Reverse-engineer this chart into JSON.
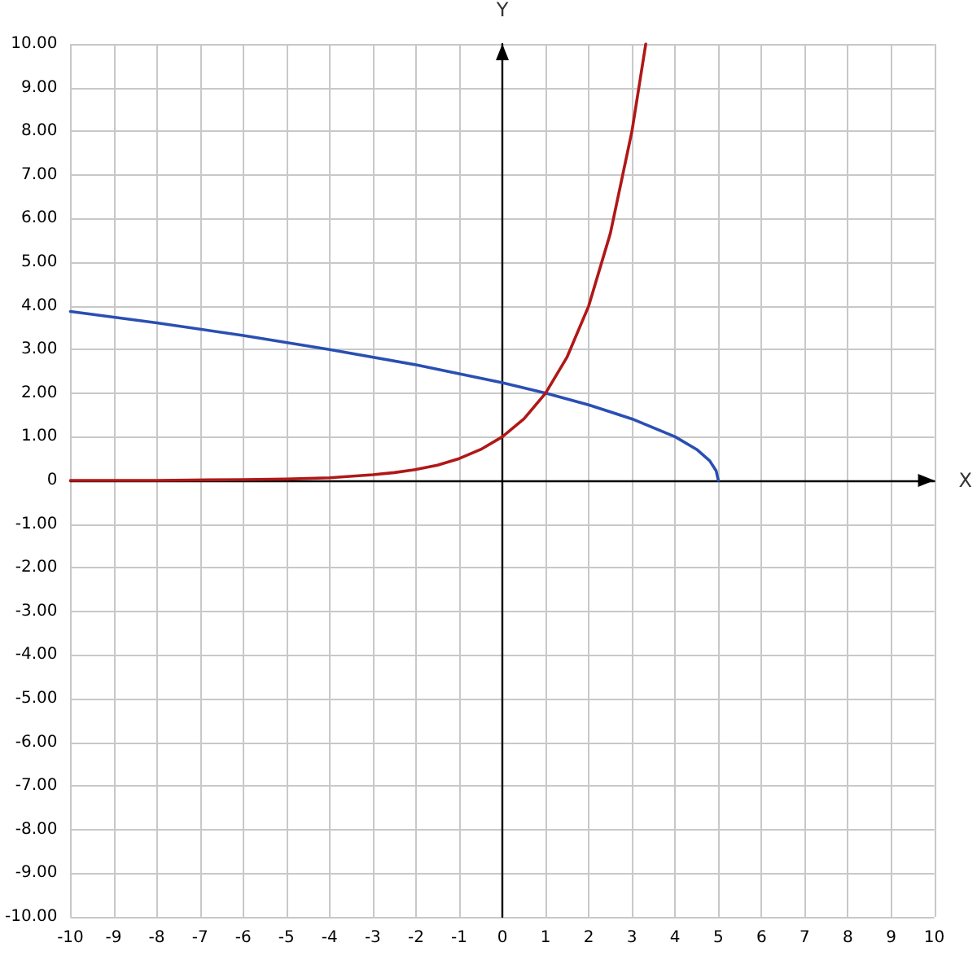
{
  "chart_data": {
    "type": "line",
    "xlabel": "X",
    "ylabel": "Y",
    "xlim": [
      -10,
      10
    ],
    "ylim": [
      -10,
      10
    ],
    "xticks": [
      -10,
      -9,
      -8,
      -7,
      -6,
      -5,
      -4,
      -3,
      -2,
      -1,
      0,
      1,
      2,
      3,
      4,
      5,
      6,
      7,
      8,
      9,
      10
    ],
    "yticks": [
      {
        "value": -10,
        "label": "-10.00"
      },
      {
        "value": -9,
        "label": "-9.00"
      },
      {
        "value": -8,
        "label": "-8.00"
      },
      {
        "value": -7,
        "label": "-7.00"
      },
      {
        "value": -6,
        "label": "-6.00"
      },
      {
        "value": -5,
        "label": "-5.00"
      },
      {
        "value": -4,
        "label": "-4.00"
      },
      {
        "value": -3,
        "label": "-3.00"
      },
      {
        "value": -2,
        "label": "-2.00"
      },
      {
        "value": -1,
        "label": "-1.00"
      },
      0,
      {
        "value": 1,
        "label": "1.00"
      },
      {
        "value": 2,
        "label": "2.00"
      },
      {
        "value": 3,
        "label": "3.00"
      },
      {
        "value": 4,
        "label": "4.00"
      },
      {
        "value": 5,
        "label": "5.00"
      },
      {
        "value": 6,
        "label": "6.00"
      },
      {
        "value": 7,
        "label": "7.00"
      },
      {
        "value": 8,
        "label": "8.00"
      },
      {
        "value": 9,
        "label": "9.00"
      },
      {
        "value": 10,
        "label": "10.00"
      }
    ],
    "grid": true,
    "marker": "none",
    "line_style": "solid",
    "series": [
      {
        "color": "#2a4fb3",
        "x": [
          -10,
          -8,
          -6,
          -4,
          -2,
          0,
          1,
          2,
          3,
          4,
          4.5,
          4.8,
          4.95,
          5
        ],
        "values": [
          3.87,
          3.61,
          3.32,
          3,
          2.65,
          2.24,
          2,
          1.73,
          1.41,
          1,
          0.71,
          0.45,
          0.22,
          0
        ]
      },
      {
        "color": "#b01818",
        "x": [
          -10,
          -8,
          -6,
          -5,
          -4,
          -3,
          -2.5,
          -2,
          -1.5,
          -1,
          -0.5,
          0,
          0.5,
          1,
          1.5,
          2,
          2.5,
          3,
          3.32
        ],
        "values": [
          0,
          0,
          0.02,
          0.03,
          0.06,
          0.13,
          0.18,
          0.25,
          0.35,
          0.5,
          0.71,
          1,
          1.41,
          2,
          2.83,
          4,
          5.66,
          8,
          10
        ]
      }
    ]
  }
}
